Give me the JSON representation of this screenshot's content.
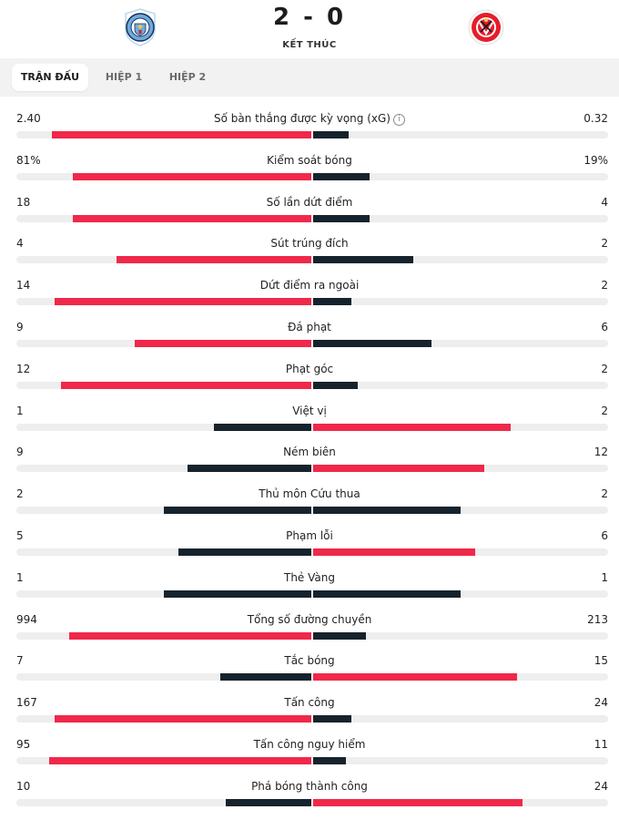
{
  "match": {
    "score": "2 - 0",
    "status": "KẾT THÚC",
    "home_crest": "manchester-city-crest",
    "away_crest": "sheffield-united-crest"
  },
  "tabs": [
    {
      "label": "TRẬN ĐẤU",
      "active": true
    },
    {
      "label": "HIỆP 1",
      "active": false
    },
    {
      "label": "HIỆP 2",
      "active": false
    }
  ],
  "colors": {
    "leader": "#f0284a",
    "trailer": "#16232c",
    "track": "#eeeeee"
  },
  "stats": [
    {
      "label": "Số bàn thắng được kỳ vọng (xG)",
      "home": "2.40",
      "away": "0.32",
      "home_level": 0.88,
      "away_level": 0.12,
      "home_color": "red",
      "away_color": "dark",
      "info": true
    },
    {
      "label": "Kiểm soát bóng",
      "home": "81%",
      "away": "19%",
      "home_level": 0.81,
      "away_level": 0.19,
      "home_color": "red",
      "away_color": "dark"
    },
    {
      "label": "Số lần dứt điểm",
      "home": "18",
      "away": "4",
      "home_level": 0.81,
      "away_level": 0.19,
      "home_color": "red",
      "away_color": "dark"
    },
    {
      "label": "Sút trúng đích",
      "home": "4",
      "away": "2",
      "home_level": 0.66,
      "away_level": 0.34,
      "home_color": "red",
      "away_color": "dark"
    },
    {
      "label": "Dứt điểm ra ngoài",
      "home": "14",
      "away": "2",
      "home_level": 0.87,
      "away_level": 0.13,
      "home_color": "red",
      "away_color": "dark"
    },
    {
      "label": "Đá phạt",
      "home": "9",
      "away": "6",
      "home_level": 0.6,
      "away_level": 0.4,
      "home_color": "red",
      "away_color": "dark"
    },
    {
      "label": "Phạt góc",
      "home": "12",
      "away": "2",
      "home_level": 0.85,
      "away_level": 0.15,
      "home_color": "red",
      "away_color": "dark"
    },
    {
      "label": "Việt vị",
      "home": "1",
      "away": "2",
      "home_level": 0.33,
      "away_level": 0.67,
      "home_color": "dark",
      "away_color": "red"
    },
    {
      "label": "Ném biên",
      "home": "9",
      "away": "12",
      "home_level": 0.42,
      "away_level": 0.58,
      "home_color": "dark",
      "away_color": "red"
    },
    {
      "label": "Thủ môn Cứu thua",
      "home": "2",
      "away": "2",
      "home_level": 0.5,
      "away_level": 0.5,
      "home_color": "dark",
      "away_color": "dark"
    },
    {
      "label": "Phạm lỗi",
      "home": "5",
      "away": "6",
      "home_level": 0.45,
      "away_level": 0.55,
      "home_color": "dark",
      "away_color": "red"
    },
    {
      "label": "Thẻ Vàng",
      "home": "1",
      "away": "1",
      "home_level": 0.5,
      "away_level": 0.5,
      "home_color": "dark",
      "away_color": "dark"
    },
    {
      "label": "Tổng số đường chuyền",
      "home": "994",
      "away": "213",
      "home_level": 0.82,
      "away_level": 0.18,
      "home_color": "red",
      "away_color": "dark"
    },
    {
      "label": "Tắc bóng",
      "home": "7",
      "away": "15",
      "home_level": 0.31,
      "away_level": 0.69,
      "home_color": "dark",
      "away_color": "red"
    },
    {
      "label": "Tấn công",
      "home": "167",
      "away": "24",
      "home_level": 0.87,
      "away_level": 0.13,
      "home_color": "red",
      "away_color": "dark"
    },
    {
      "label": "Tấn công nguy hiểm",
      "home": "95",
      "away": "11",
      "home_level": 0.89,
      "away_level": 0.11,
      "home_color": "red",
      "away_color": "dark"
    },
    {
      "label": "Phá bóng thành công",
      "home": "10",
      "away": "24",
      "home_level": 0.29,
      "away_level": 0.71,
      "home_color": "dark",
      "away_color": "red"
    }
  ]
}
